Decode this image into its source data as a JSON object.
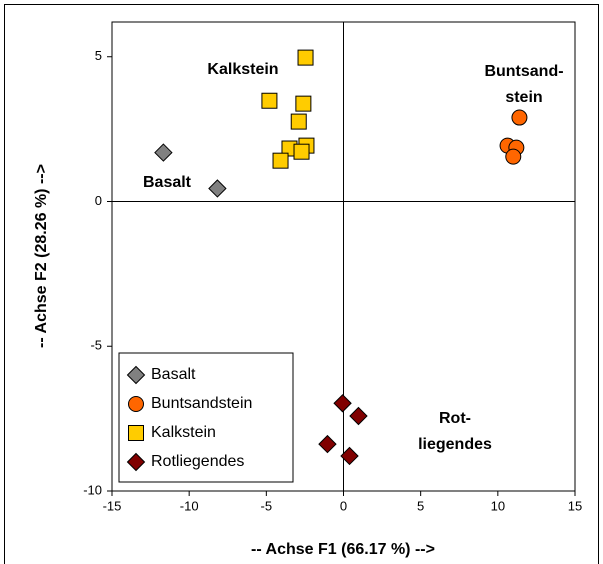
{
  "chart_data": {
    "type": "scatter",
    "xlabel": "-- Achse F1 (66.17 %) -->",
    "ylabel": "-- Achse F2 (28.26 %) -->",
    "xlim": [
      -15,
      15
    ],
    "ylim": [
      -10,
      6.2
    ],
    "xticks": [
      -15,
      -10,
      -5,
      0,
      5,
      10,
      15
    ],
    "yticks": [
      -10,
      -5,
      0,
      5
    ],
    "legend": "lower left",
    "series": [
      {
        "name": "Basalt",
        "color": "#808080",
        "marker": "diamond",
        "x": [
          -11.67,
          -8.17
        ],
        "values": [
          1.69,
          0.45
        ]
      },
      {
        "name": "Buntsandstein",
        "color": "#ff6600",
        "marker": "circle",
        "x": [
          11.4,
          10.63,
          11.2,
          11.0
        ],
        "values": [
          2.9,
          1.93,
          1.86,
          1.55
        ]
      },
      {
        "name": "Kalkstein",
        "color": "#ffcc00",
        "marker": "square",
        "x": [
          -2.46,
          -4.8,
          -2.6,
          -2.9,
          -2.4,
          -3.5,
          -2.72,
          -4.08
        ],
        "values": [
          4.97,
          3.48,
          3.38,
          2.76,
          1.93,
          1.83,
          1.72,
          1.41
        ]
      },
      {
        "name": "Rotliegendes",
        "color": "#800000",
        "marker": "diamond",
        "x": [
          -0.06,
          0.97,
          -1.04,
          0.39
        ],
        "values": [
          -6.97,
          -7.41,
          -8.38,
          -8.79
        ]
      }
    ],
    "annotations": [
      [
        "Kalkstein"
      ],
      [
        "Basalt"
      ],
      [
        "Buntsand-",
        "stein"
      ],
      [
        "Rot-",
        "liegendes"
      ]
    ]
  }
}
